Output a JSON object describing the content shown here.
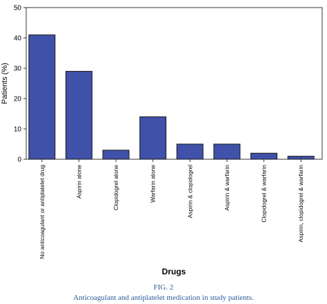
{
  "chart_data": {
    "type": "bar",
    "categories": [
      "No anticoagulant or antiplatelet drug",
      "Aspirin alone",
      "Clopidogrel alone",
      "Warfarin alone",
      "Aspirin & clopidogrel",
      "Aspirin & warfarin",
      "Clopidogrel & warfarin",
      "Aspirin, clopidogrel & warfarin"
    ],
    "values": [
      41,
      29,
      3,
      14,
      5,
      5,
      2,
      1
    ],
    "xlabel": "Drugs",
    "ylabel": "Patients (%)",
    "ylim": [
      0,
      50
    ],
    "yticks": [
      0,
      10,
      20,
      30,
      40,
      50
    ],
    "bar_color": "#3f51a9",
    "grid": false
  },
  "caption": {
    "label": "FIG. 2",
    "text": "Anticoagulant and antiplatelet medication in study patients.",
    "color": "#2a5a9a"
  }
}
